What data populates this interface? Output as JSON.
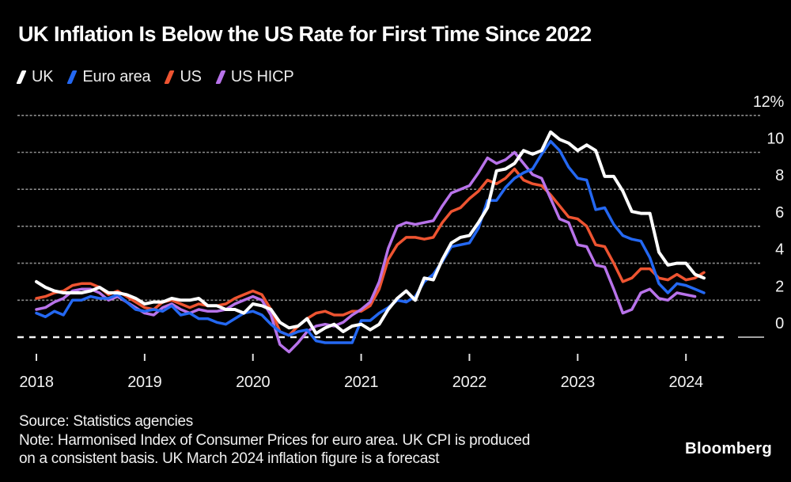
{
  "header": {
    "title": "UK Inflation Is Below the US Rate for First Time Since 2022"
  },
  "legend": {
    "marker_shape": "slash",
    "items": [
      {
        "label": "UK",
        "color": "#ffffff"
      },
      {
        "label": "Euro area",
        "color": "#2468f2"
      },
      {
        "label": "US",
        "color": "#ee5431"
      },
      {
        "label": "US HICP",
        "color": "#b873ea"
      }
    ]
  },
  "chart_data": {
    "type": "line",
    "title": "UK Inflation Is Below the US Rate for First Time Since 2022",
    "unit": "percent, year-over-year",
    "x_start": "2018-01",
    "x_end": "2024-03",
    "x_frequency": "monthly",
    "ylim": [
      -1.2,
      12.6
    ],
    "grid": "dotted horizontal gridlines, dashed zero line",
    "legend_position": "top-left",
    "y_ticks": [
      {
        "value": 0,
        "label": "0"
      },
      {
        "value": 2,
        "label": "2"
      },
      {
        "value": 4,
        "label": "4"
      },
      {
        "value": 6,
        "label": "6"
      },
      {
        "value": 8,
        "label": "8"
      },
      {
        "value": 10,
        "label": "10"
      },
      {
        "value": 12,
        "label": "12%"
      }
    ],
    "x_ticks": [
      {
        "label": "2018",
        "month_index": 0
      },
      {
        "label": "2019",
        "month_index": 12
      },
      {
        "label": "2020",
        "month_index": 24
      },
      {
        "label": "2021",
        "month_index": 36
      },
      {
        "label": "2022",
        "month_index": 48
      },
      {
        "label": "2023",
        "month_index": 60
      },
      {
        "label": "2024",
        "month_index": 72
      }
    ],
    "series": [
      {
        "name": "UK",
        "color": "#ffffff",
        "values": [
          3.0,
          2.7,
          2.5,
          2.4,
          2.4,
          2.4,
          2.5,
          2.7,
          2.4,
          2.4,
          2.3,
          2.1,
          1.8,
          1.9,
          1.9,
          2.1,
          2.0,
          2.0,
          2.1,
          1.7,
          1.7,
          1.5,
          1.5,
          1.3,
          1.8,
          1.7,
          1.5,
          0.8,
          0.5,
          0.6,
          1.0,
          0.2,
          0.5,
          0.7,
          0.3,
          0.6,
          0.7,
          0.4,
          0.7,
          1.5,
          2.1,
          2.5,
          2.0,
          3.2,
          3.1,
          4.2,
          5.1,
          5.4,
          5.5,
          6.2,
          7.0,
          9.0,
          9.1,
          9.4,
          10.1,
          9.9,
          10.1,
          11.1,
          10.7,
          10.5,
          10.1,
          10.4,
          10.1,
          8.7,
          8.7,
          7.9,
          6.8,
          6.7,
          6.7,
          4.6,
          3.9,
          4.0,
          4.0,
          3.4,
          3.2
        ]
      },
      {
        "name": "Euro area",
        "color": "#2468f2",
        "values": [
          1.3,
          1.1,
          1.4,
          1.2,
          2.0,
          2.0,
          2.2,
          2.1,
          2.1,
          2.3,
          1.9,
          1.5,
          1.4,
          1.5,
          1.4,
          1.7,
          1.2,
          1.3,
          1.0,
          1.0,
          0.8,
          0.7,
          1.0,
          1.3,
          1.4,
          1.2,
          0.7,
          0.3,
          0.1,
          0.3,
          0.4,
          -0.2,
          -0.3,
          -0.3,
          -0.3,
          -0.3,
          0.9,
          0.9,
          1.3,
          1.6,
          2.0,
          1.9,
          2.2,
          3.0,
          3.4,
          4.1,
          4.9,
          5.0,
          5.1,
          5.9,
          7.4,
          7.4,
          8.1,
          8.6,
          8.9,
          9.1,
          9.9,
          10.6,
          10.1,
          9.2,
          8.6,
          8.5,
          6.9,
          7.0,
          6.1,
          5.5,
          5.3,
          5.2,
          4.3,
          2.9,
          2.4,
          2.9,
          2.8,
          2.6,
          2.4
        ]
      },
      {
        "name": "US",
        "color": "#ee5431",
        "values": [
          2.1,
          2.2,
          2.4,
          2.5,
          2.8,
          2.9,
          2.9,
          2.7,
          2.3,
          2.5,
          2.2,
          1.9,
          1.6,
          1.5,
          1.9,
          2.0,
          1.8,
          1.6,
          1.8,
          1.7,
          1.7,
          1.8,
          2.1,
          2.3,
          2.5,
          2.3,
          1.5,
          0.3,
          0.1,
          0.6,
          1.0,
          1.3,
          1.4,
          1.2,
          1.2,
          1.4,
          1.4,
          1.7,
          2.6,
          4.2,
          5.0,
          5.4,
          5.4,
          5.3,
          5.4,
          6.2,
          6.8,
          7.0,
          7.5,
          7.9,
          8.5,
          8.3,
          8.6,
          9.1,
          8.5,
          8.3,
          8.2,
          7.7,
          7.1,
          6.5,
          6.4,
          6.0,
          5.0,
          4.9,
          4.0,
          3.0,
          3.2,
          3.7,
          3.7,
          3.2,
          3.1,
          3.4,
          3.1,
          3.2,
          3.5
        ]
      },
      {
        "name": "US HICP",
        "color": "#b873ea",
        "values": [
          1.5,
          1.6,
          1.9,
          2.1,
          2.5,
          2.6,
          2.6,
          2.4,
          2.0,
          2.2,
          1.9,
          1.6,
          1.3,
          1.2,
          1.6,
          1.8,
          1.5,
          1.3,
          1.5,
          1.4,
          1.4,
          1.5,
          1.8,
          2.0,
          2.2,
          2.0,
          1.2,
          -0.4,
          -0.8,
          -0.3,
          0.3,
          0.6,
          0.7,
          0.6,
          0.8,
          1.2,
          1.5,
          1.9,
          3.0,
          4.8,
          6.0,
          6.2,
          6.1,
          6.2,
          6.3,
          7.1,
          7.8,
          8.0,
          8.2,
          8.9,
          9.7,
          9.4,
          9.6,
          10.0,
          9.4,
          8.8,
          8.6,
          7.5,
          6.4,
          6.2,
          5.0,
          4.9,
          3.9,
          3.8,
          2.6,
          1.3,
          1.5,
          2.4,
          2.6,
          2.1,
          2.0,
          2.4,
          2.3,
          2.2
        ]
      }
    ]
  },
  "footer": {
    "source": "Source: Statistics agencies",
    "note_line1": "Note: Harmonised Index of Consumer Prices for euro area. UK CPI is produced",
    "note_line2": "on a consistent basis. UK March 2024 inflation figure is a forecast",
    "brand": "Bloomberg"
  }
}
